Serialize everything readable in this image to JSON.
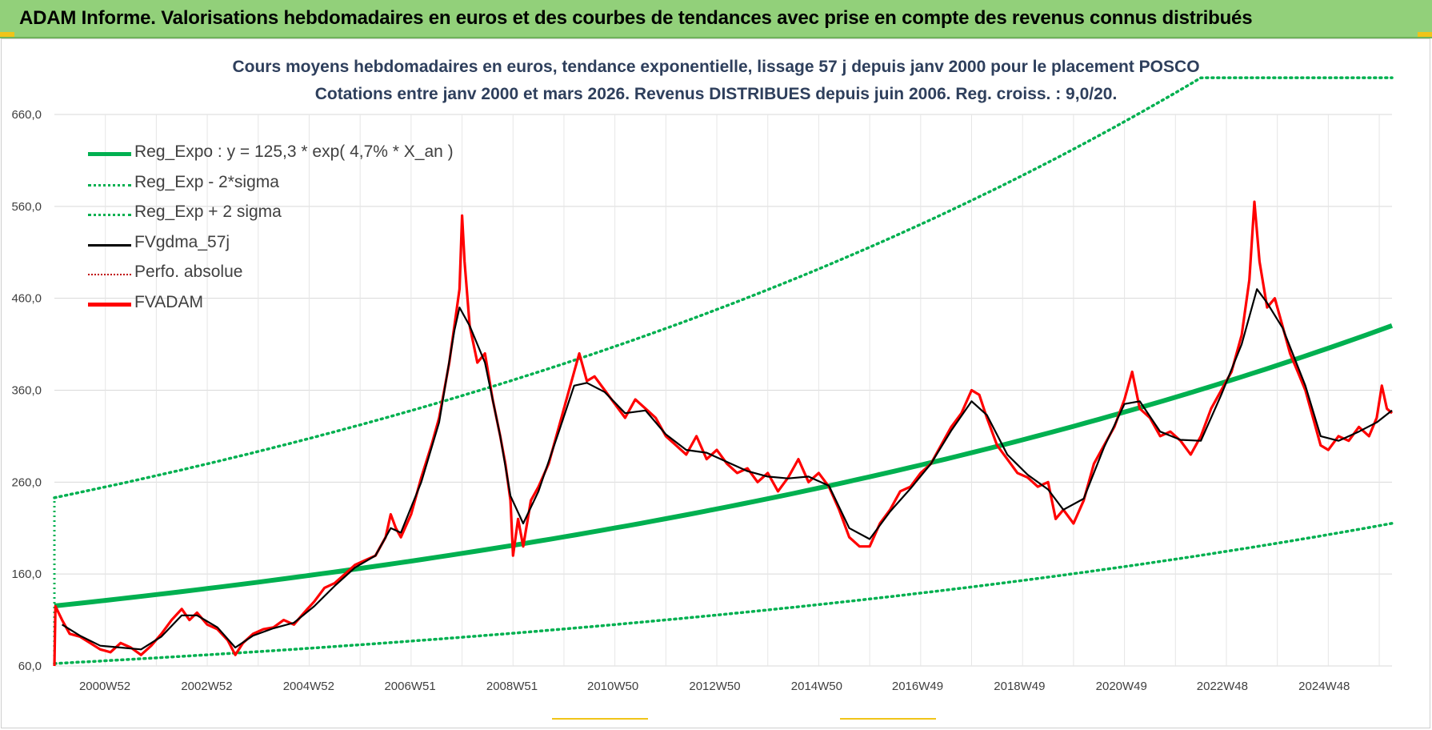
{
  "banner": {
    "title": "ADAM Informe. Valorisations hebdomadaires en euros et des courbes de tendances avec prise en compte des revenus connus distribués"
  },
  "colors": {
    "banner_bg": "#92d07a",
    "title_text": "#2e3f5c",
    "reg_expo": "#00b050",
    "fvadam": "#ff0000",
    "fvgdma": "#000000",
    "perfo": "#c00000",
    "grid": "#d9d9d9"
  },
  "chart_data": {
    "type": "line",
    "title_lines": [
      "Cours moyens hebdomadaires en euros, tendance exponentielle, lissage 57 j depuis janv 2000 pour le placement POSCO",
      "Cotations entre janv 2000 et mars 2026. Revenus DISTRIBUES depuis juin 2006. Reg. croiss. : 9,0/20."
    ],
    "ylim": [
      60,
      660
    ],
    "y_ticks": [
      "60,0",
      "160,0",
      "260,0",
      "360,0",
      "460,0",
      "560,0",
      "660,0"
    ],
    "y_tick_values": [
      60,
      160,
      260,
      360,
      460,
      560,
      660
    ],
    "xlim": [
      2000.0,
      2026.25
    ],
    "x_ticks": [
      "2000W52",
      "2002W52",
      "2004W52",
      "2006W51",
      "2008W51",
      "2010W50",
      "2012W50",
      "2014W50",
      "2016W49",
      "2018W49",
      "2020W49",
      "2022W48",
      "2024W48"
    ],
    "x_tick_values": [
      2000.99,
      2002.99,
      2004.99,
      2006.98,
      2008.98,
      2010.96,
      2012.96,
      2014.96,
      2016.94,
      2018.94,
      2020.94,
      2022.92,
      2024.92
    ],
    "grid": true,
    "legend_position": "top-left",
    "regression": {
      "a": 125.3,
      "rate": 0.047,
      "sigma_low_factor": 0.5,
      "sigma_high_factor": 1.94
    },
    "legend": [
      {
        "name": "Reg_Expo : y = 125,3 * exp( 4,7% *  X_an )",
        "style": "solid-thick",
        "color": "#00b050"
      },
      {
        "name": "Reg_Exp - 2*sigma",
        "style": "dotted",
        "color": "#00b050"
      },
      {
        "name": "Reg_Exp + 2 sigma",
        "style": "dotted",
        "color": "#00b050"
      },
      {
        "name": "FVgdma_57j",
        "style": "solid",
        "color": "#000000"
      },
      {
        "name": "Perfo. absolue",
        "style": "dotted",
        "color": "#c00000"
      },
      {
        "name": "FVADAM",
        "style": "solid-thick",
        "color": "#ff0000"
      }
    ],
    "series": [
      {
        "name": "FVADAM",
        "points": [
          [
            2000.0,
            60
          ],
          [
            2000.02,
            125
          ],
          [
            2000.15,
            110
          ],
          [
            2000.3,
            95
          ],
          [
            2000.5,
            92
          ],
          [
            2000.7,
            85
          ],
          [
            2000.9,
            78
          ],
          [
            2001.1,
            75
          ],
          [
            2001.3,
            85
          ],
          [
            2001.5,
            80
          ],
          [
            2001.7,
            72
          ],
          [
            2001.9,
            82
          ],
          [
            2002.1,
            95
          ],
          [
            2002.3,
            110
          ],
          [
            2002.5,
            122
          ],
          [
            2002.65,
            110
          ],
          [
            2002.8,
            118
          ],
          [
            2003.0,
            105
          ],
          [
            2003.2,
            100
          ],
          [
            2003.4,
            88
          ],
          [
            2003.55,
            72
          ],
          [
            2003.7,
            85
          ],
          [
            2003.9,
            95
          ],
          [
            2004.1,
            100
          ],
          [
            2004.3,
            102
          ],
          [
            2004.5,
            110
          ],
          [
            2004.7,
            105
          ],
          [
            2004.9,
            118
          ],
          [
            2005.1,
            130
          ],
          [
            2005.3,
            145
          ],
          [
            2005.5,
            150
          ],
          [
            2005.7,
            160
          ],
          [
            2005.9,
            170
          ],
          [
            2006.1,
            175
          ],
          [
            2006.3,
            180
          ],
          [
            2006.5,
            200
          ],
          [
            2006.6,
            225
          ],
          [
            2006.7,
            210
          ],
          [
            2006.8,
            200
          ],
          [
            2007.0,
            225
          ],
          [
            2007.2,
            265
          ],
          [
            2007.4,
            300
          ],
          [
            2007.55,
            330
          ],
          [
            2007.65,
            360
          ],
          [
            2007.75,
            390
          ],
          [
            2007.85,
            430
          ],
          [
            2007.95,
            470
          ],
          [
            2008.0,
            550
          ],
          [
            2008.05,
            500
          ],
          [
            2008.15,
            430
          ],
          [
            2008.3,
            390
          ],
          [
            2008.45,
            400
          ],
          [
            2008.6,
            350
          ],
          [
            2008.75,
            310
          ],
          [
            2008.85,
            280
          ],
          [
            2008.95,
            240
          ],
          [
            2009.0,
            180
          ],
          [
            2009.1,
            220
          ],
          [
            2009.2,
            190
          ],
          [
            2009.35,
            240
          ],
          [
            2009.5,
            255
          ],
          [
            2009.7,
            280
          ],
          [
            2009.9,
            320
          ],
          [
            2010.05,
            350
          ],
          [
            2010.2,
            380
          ],
          [
            2010.3,
            400
          ],
          [
            2010.45,
            370
          ],
          [
            2010.6,
            375
          ],
          [
            2010.8,
            360
          ],
          [
            2011.0,
            345
          ],
          [
            2011.2,
            330
          ],
          [
            2011.4,
            350
          ],
          [
            2011.6,
            340
          ],
          [
            2011.8,
            330
          ],
          [
            2012.0,
            310
          ],
          [
            2012.2,
            300
          ],
          [
            2012.4,
            290
          ],
          [
            2012.6,
            310
          ],
          [
            2012.8,
            285
          ],
          [
            2013.0,
            295
          ],
          [
            2013.2,
            280
          ],
          [
            2013.4,
            270
          ],
          [
            2013.6,
            275
          ],
          [
            2013.8,
            260
          ],
          [
            2014.0,
            270
          ],
          [
            2014.2,
            250
          ],
          [
            2014.4,
            265
          ],
          [
            2014.6,
            285
          ],
          [
            2014.8,
            260
          ],
          [
            2015.0,
            270
          ],
          [
            2015.2,
            255
          ],
          [
            2015.4,
            230
          ],
          [
            2015.6,
            200
          ],
          [
            2015.8,
            190
          ],
          [
            2016.0,
            190
          ],
          [
            2016.2,
            215
          ],
          [
            2016.4,
            230
          ],
          [
            2016.6,
            250
          ],
          [
            2016.8,
            255
          ],
          [
            2017.0,
            270
          ],
          [
            2017.2,
            280
          ],
          [
            2017.4,
            300
          ],
          [
            2017.6,
            320
          ],
          [
            2017.8,
            335
          ],
          [
            2018.0,
            360
          ],
          [
            2018.15,
            355
          ],
          [
            2018.3,
            330
          ],
          [
            2018.5,
            300
          ],
          [
            2018.7,
            285
          ],
          [
            2018.9,
            270
          ],
          [
            2019.1,
            265
          ],
          [
            2019.3,
            255
          ],
          [
            2019.5,
            260
          ],
          [
            2019.65,
            220
          ],
          [
            2019.8,
            230
          ],
          [
            2020.0,
            215
          ],
          [
            2020.2,
            240
          ],
          [
            2020.4,
            280
          ],
          [
            2020.6,
            300
          ],
          [
            2020.8,
            320
          ],
          [
            2021.0,
            350
          ],
          [
            2021.15,
            380
          ],
          [
            2021.3,
            340
          ],
          [
            2021.5,
            330
          ],
          [
            2021.7,
            310
          ],
          [
            2021.9,
            315
          ],
          [
            2022.1,
            305
          ],
          [
            2022.3,
            290
          ],
          [
            2022.5,
            310
          ],
          [
            2022.7,
            340
          ],
          [
            2022.9,
            360
          ],
          [
            2023.1,
            380
          ],
          [
            2023.3,
            420
          ],
          [
            2023.45,
            480
          ],
          [
            2023.55,
            565
          ],
          [
            2023.65,
            500
          ],
          [
            2023.8,
            450
          ],
          [
            2023.95,
            460
          ],
          [
            2024.1,
            430
          ],
          [
            2024.25,
            400
          ],
          [
            2024.4,
            380
          ],
          [
            2024.55,
            360
          ],
          [
            2024.7,
            330
          ],
          [
            2024.85,
            300
          ],
          [
            2025.0,
            295
          ],
          [
            2025.2,
            310
          ],
          [
            2025.4,
            305
          ],
          [
            2025.6,
            320
          ],
          [
            2025.8,
            310
          ],
          [
            2025.95,
            330
          ],
          [
            2026.05,
            365
          ],
          [
            2026.15,
            340
          ],
          [
            2026.25,
            335
          ]
        ]
      },
      {
        "name": "FVgdma_57j",
        "points": [
          [
            2000.15,
            105
          ],
          [
            2000.5,
            93
          ],
          [
            2000.9,
            82
          ],
          [
            2001.3,
            80
          ],
          [
            2001.7,
            78
          ],
          [
            2002.1,
            92
          ],
          [
            2002.5,
            115
          ],
          [
            2002.8,
            115
          ],
          [
            2003.2,
            102
          ],
          [
            2003.55,
            80
          ],
          [
            2003.9,
            93
          ],
          [
            2004.3,
            101
          ],
          [
            2004.7,
            107
          ],
          [
            2005.1,
            125
          ],
          [
            2005.5,
            147
          ],
          [
            2005.9,
            167
          ],
          [
            2006.3,
            180
          ],
          [
            2006.6,
            210
          ],
          [
            2006.8,
            205
          ],
          [
            2007.2,
            260
          ],
          [
            2007.55,
            325
          ],
          [
            2007.85,
            425
          ],
          [
            2007.95,
            450
          ],
          [
            2008.15,
            430
          ],
          [
            2008.45,
            390
          ],
          [
            2008.75,
            310
          ],
          [
            2008.95,
            245
          ],
          [
            2009.2,
            215
          ],
          [
            2009.5,
            250
          ],
          [
            2009.9,
            315
          ],
          [
            2010.2,
            365
          ],
          [
            2010.45,
            368
          ],
          [
            2010.8,
            358
          ],
          [
            2011.2,
            335
          ],
          [
            2011.6,
            338
          ],
          [
            2012.0,
            312
          ],
          [
            2012.4,
            295
          ],
          [
            2012.8,
            292
          ],
          [
            2013.2,
            282
          ],
          [
            2013.6,
            272
          ],
          [
            2014.0,
            266
          ],
          [
            2014.4,
            264
          ],
          [
            2014.8,
            266
          ],
          [
            2015.2,
            256
          ],
          [
            2015.6,
            210
          ],
          [
            2016.0,
            198
          ],
          [
            2016.4,
            228
          ],
          [
            2016.8,
            253
          ],
          [
            2017.2,
            280
          ],
          [
            2017.6,
            316
          ],
          [
            2018.0,
            348
          ],
          [
            2018.3,
            333
          ],
          [
            2018.7,
            290
          ],
          [
            2019.1,
            268
          ],
          [
            2019.5,
            252
          ],
          [
            2019.8,
            230
          ],
          [
            2020.2,
            242
          ],
          [
            2020.6,
            298
          ],
          [
            2021.0,
            345
          ],
          [
            2021.3,
            348
          ],
          [
            2021.7,
            315
          ],
          [
            2022.1,
            306
          ],
          [
            2022.5,
            305
          ],
          [
            2022.9,
            355
          ],
          [
            2023.3,
            410
          ],
          [
            2023.6,
            470
          ],
          [
            2023.8,
            455
          ],
          [
            2024.1,
            428
          ],
          [
            2024.55,
            365
          ],
          [
            2024.85,
            310
          ],
          [
            2025.2,
            305
          ],
          [
            2025.6,
            315
          ],
          [
            2025.95,
            325
          ],
          [
            2026.25,
            338
          ]
        ]
      }
    ]
  }
}
